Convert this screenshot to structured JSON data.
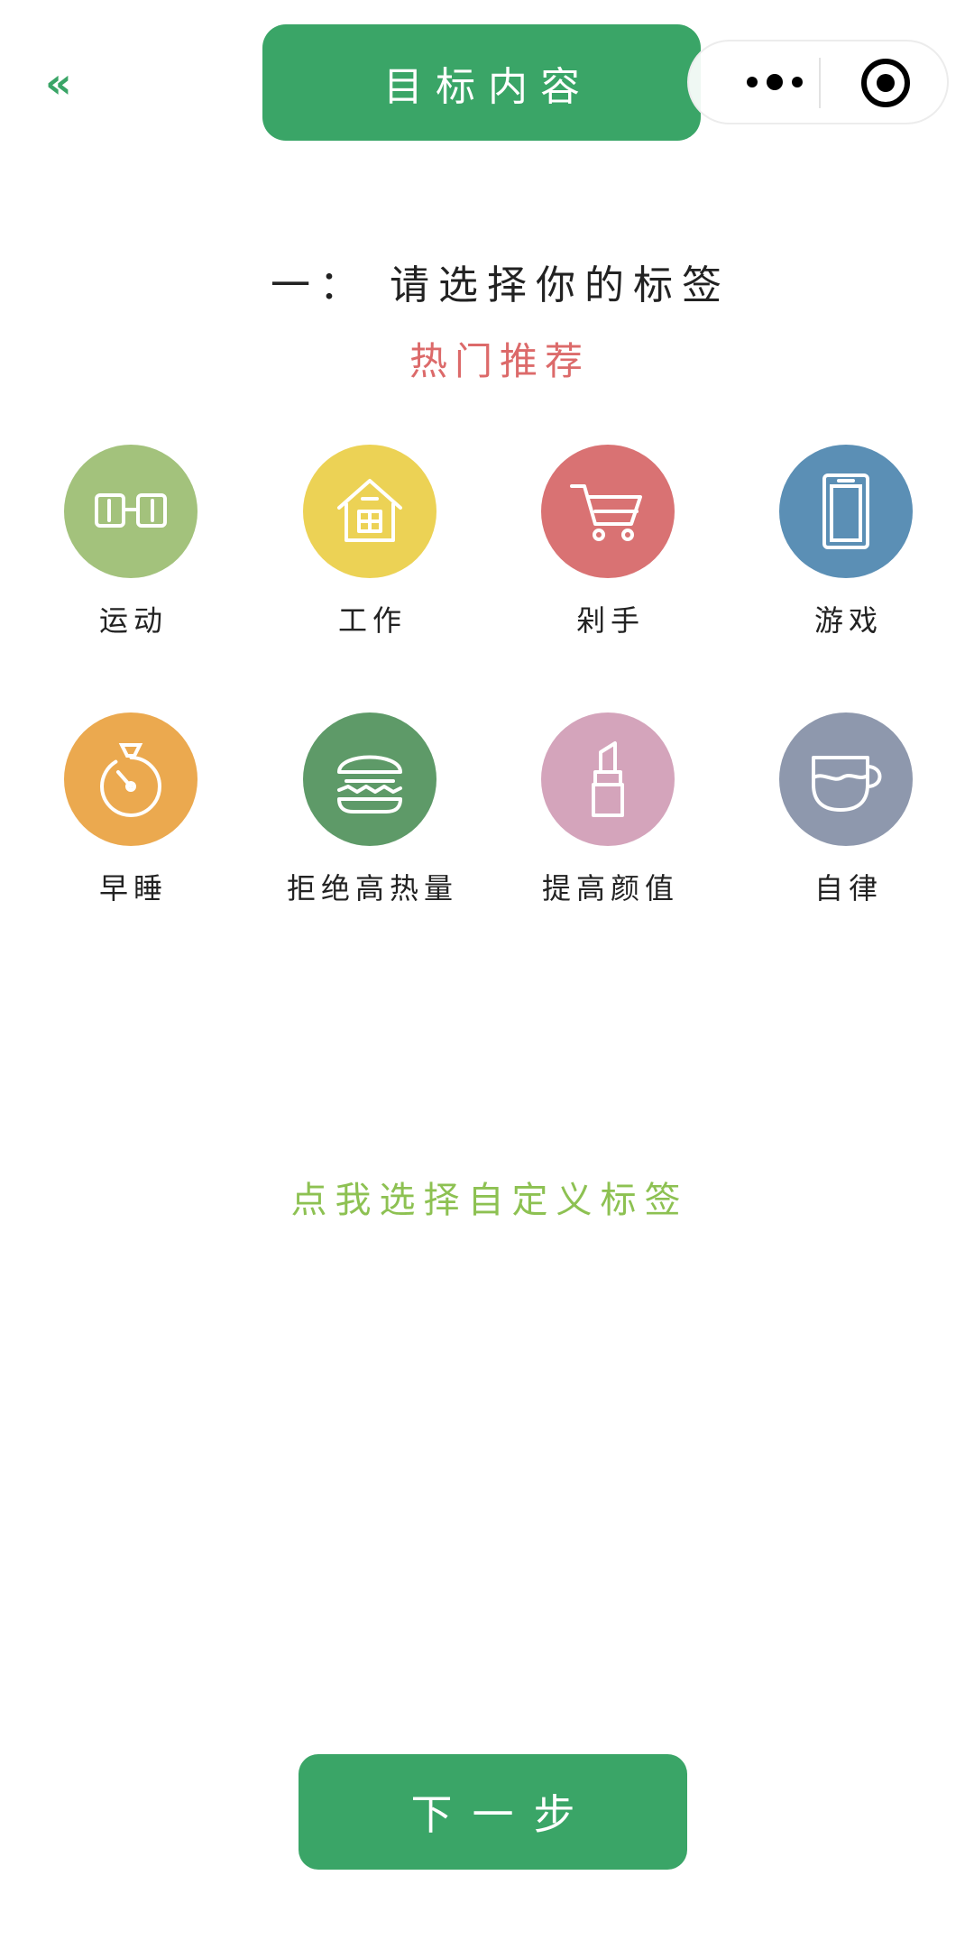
{
  "header": {
    "back_glyph": "«",
    "title": "目标内容"
  },
  "section": {
    "step_title": "一：  请选择你的标签",
    "hot_label": "热门推荐"
  },
  "tags": [
    {
      "label": "运动",
      "color": "#a3c27c",
      "icon": "glasses-icon"
    },
    {
      "label": "工作",
      "color": "#ecd255",
      "icon": "house-icon"
    },
    {
      "label": "剁手",
      "color": "#d97273",
      "icon": "cart-icon"
    },
    {
      "label": "游戏",
      "color": "#5b8fb5",
      "icon": "tablet-icon"
    },
    {
      "label": "早睡",
      "color": "#eba94f",
      "icon": "stopwatch-icon"
    },
    {
      "label": "拒绝高热量",
      "color": "#5e9a68",
      "icon": "burger-icon"
    },
    {
      "label": "提高颜值",
      "color": "#d4a4bb",
      "icon": "lipstick-icon"
    },
    {
      "label": "自律",
      "color": "#8e98ad",
      "icon": "cup-icon"
    }
  ],
  "custom_link": "点我选择自定义标签",
  "next_button": "下一步",
  "colors": {
    "primary": "#3aa567",
    "hot": "#dc6a6a",
    "custom": "#8dc152"
  }
}
